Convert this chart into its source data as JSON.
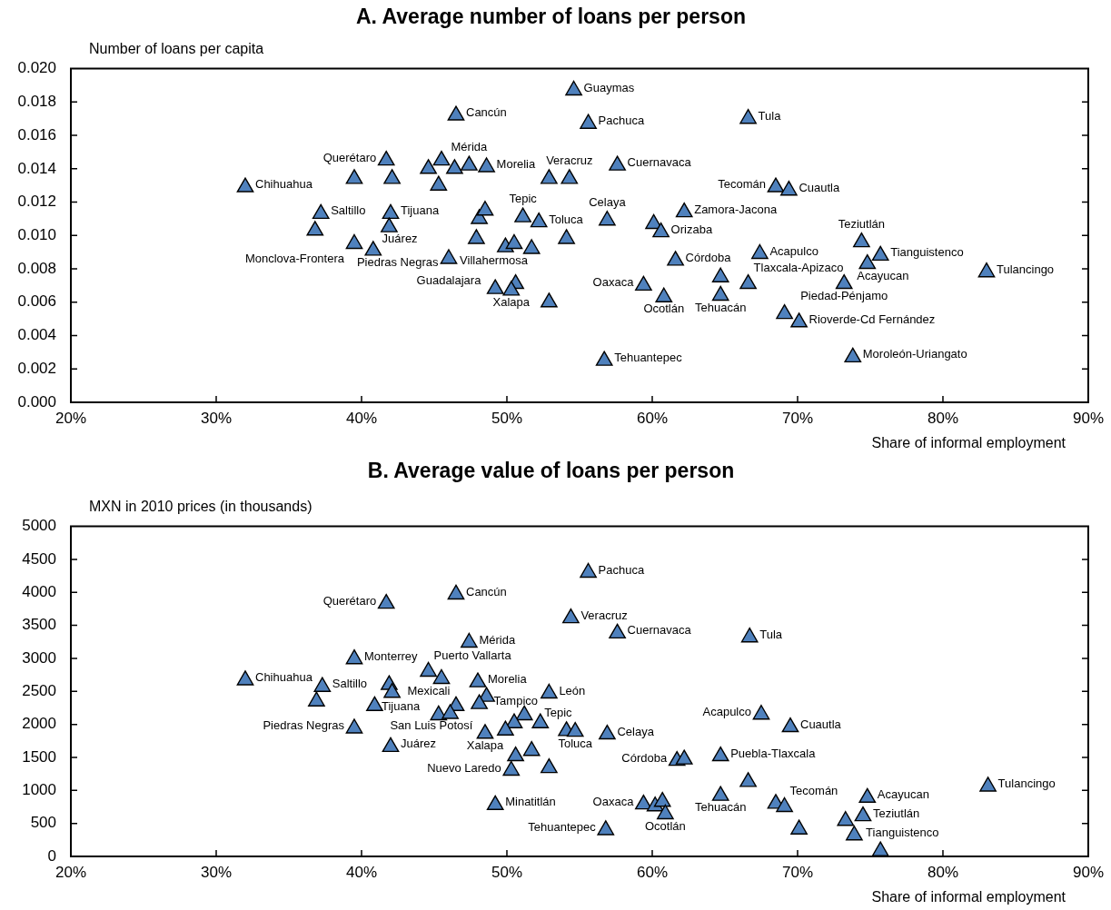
{
  "chart_data": [
    {
      "type": "scatter",
      "title": "A. Average number of loans per person",
      "ylabel": "Number of loans per capita",
      "xlabel": "Share of informal employment",
      "x": [
        32.0,
        37.2,
        36.8,
        39.5,
        40.8,
        39.5,
        41.7,
        42.1,
        42.0,
        41.9,
        46.5,
        44.6,
        45.5,
        45.3,
        46.4,
        47.4,
        48.6,
        54.6,
        55.6,
        52.9,
        54.3,
        57.6,
        66.6,
        51.1,
        52.2,
        48.1,
        48.5,
        47.9,
        56.9,
        54.1,
        49.9,
        50.5,
        51.7,
        46.0,
        49.2,
        50.6,
        50.3,
        52.9,
        56.7,
        62.2,
        60.1,
        60.6,
        61.6,
        59.4,
        60.8,
        64.7,
        64.7,
        66.6,
        67.4,
        68.5,
        69.4,
        74.4,
        75.7,
        74.8,
        73.2,
        83.0,
        69.1,
        70.1,
        73.8
      ],
      "values": [
        0.0129,
        0.0113,
        0.0103,
        0.0095,
        0.0091,
        0.0134,
        0.0145,
        0.0134,
        0.0113,
        0.0105,
        0.0172,
        0.014,
        0.0145,
        0.013,
        0.014,
        0.0142,
        0.0141,
        0.0187,
        0.0167,
        0.0134,
        0.0134,
        0.0142,
        0.017,
        0.0111,
        0.0108,
        0.011,
        0.0115,
        0.0098,
        0.0109,
        0.0098,
        0.0093,
        0.0095,
        0.0092,
        0.0086,
        0.0068,
        0.0071,
        0.0067,
        0.006,
        0.0025,
        0.0114,
        0.0107,
        0.0102,
        0.0085,
        0.007,
        0.0063,
        0.0064,
        0.0075,
        0.0071,
        0.0089,
        0.0129,
        0.0127,
        0.0096,
        0.0088,
        0.0083,
        0.0071,
        0.0078,
        0.0053,
        0.0048,
        0.0027
      ],
      "color": "#4f81bd",
      "marker": "triangle",
      "grid": false,
      "legend": false,
      "xlim": [
        20,
        90
      ],
      "xticks": [
        {
          "value": 20,
          "label": "20%"
        },
        {
          "value": 30,
          "label": "30%"
        },
        {
          "value": 40,
          "label": "40%"
        },
        {
          "value": 50,
          "label": "50%"
        },
        {
          "value": 60,
          "label": "60%"
        },
        {
          "value": 70,
          "label": "70%"
        },
        {
          "value": 80,
          "label": "80%"
        },
        {
          "value": 90,
          "label": "90%"
        }
      ],
      "ylim": [
        0,
        0.02
      ],
      "yticks": [
        {
          "value": 0,
          "label": "0.000"
        },
        {
          "value": 0.002,
          "label": "0.002"
        },
        {
          "value": 0.004,
          "label": "0.004"
        },
        {
          "value": 0.006,
          "label": "0.006"
        },
        {
          "value": 0.008,
          "label": "0.008"
        },
        {
          "value": 0.01,
          "label": "0.010"
        },
        {
          "value": 0.012,
          "label": "0.012"
        },
        {
          "value": 0.014,
          "label": "0.014"
        },
        {
          "value": 0.016,
          "label": "0.016"
        },
        {
          "value": 0.018,
          "label": "0.018"
        },
        {
          "value": 0.02,
          "label": "0.020"
        }
      ],
      "annotations": [
        {
          "text": "Chihuahua",
          "x": 32.0,
          "y": 0.0129
        },
        {
          "text": "Saltillo",
          "x": 37.2,
          "y": 0.0113
        },
        {
          "text": "Monclova-Frontera",
          "x": 39.5,
          "y": 0.0095
        },
        {
          "text": "Piedras Negras",
          "x": 40.8,
          "y": 0.0091
        },
        {
          "text": "Querétaro",
          "x": 41.7,
          "y": 0.0145
        },
        {
          "text": "Tijuana",
          "x": 42.0,
          "y": 0.0113
        },
        {
          "text": "Juárez",
          "x": 41.9,
          "y": 0.0105
        },
        {
          "text": "Cancún",
          "x": 46.5,
          "y": 0.0172
        },
        {
          "text": "Mérida",
          "x": 47.4,
          "y": 0.0142
        },
        {
          "text": "Morelia",
          "x": 48.6,
          "y": 0.0141
        },
        {
          "text": "Guaymas",
          "x": 54.6,
          "y": 0.0187
        },
        {
          "text": "Pachuca",
          "x": 55.6,
          "y": 0.0167
        },
        {
          "text": "Veracruz",
          "x": 54.3,
          "y": 0.0134
        },
        {
          "text": "Cuernavaca",
          "x": 57.6,
          "y": 0.0142
        },
        {
          "text": "Tula",
          "x": 66.6,
          "y": 0.017
        },
        {
          "text": "Tepic",
          "x": 51.1,
          "y": 0.0111
        },
        {
          "text": "Toluca",
          "x": 52.2,
          "y": 0.0108
        },
        {
          "text": "Celaya",
          "x": 56.9,
          "y": 0.0109
        },
        {
          "text": "Villahermosa",
          "x": 50.5,
          "y": 0.0095
        },
        {
          "text": "Guadalajara",
          "x": 46.0,
          "y": 0.0086
        },
        {
          "text": "Xalapa",
          "x": 50.3,
          "y": 0.0067
        },
        {
          "text": "Tehuantepec",
          "x": 56.7,
          "y": 0.0025
        },
        {
          "text": "Zamora-Jacona",
          "x": 62.2,
          "y": 0.0114
        },
        {
          "text": "Orizaba",
          "x": 60.6,
          "y": 0.0102
        },
        {
          "text": "Córdoba",
          "x": 61.6,
          "y": 0.0085
        },
        {
          "text": "Oaxaca",
          "x": 59.4,
          "y": 0.007
        },
        {
          "text": "Ocotlán",
          "x": 60.8,
          "y": 0.0063
        },
        {
          "text": "Tehuacán",
          "x": 64.7,
          "y": 0.0064
        },
        {
          "text": "Tlaxcala-Apizaco",
          "x": 66.6,
          "y": 0.0071
        },
        {
          "text": "Acapulco",
          "x": 67.4,
          "y": 0.0089
        },
        {
          "text": "Tecomán",
          "x": 68.5,
          "y": 0.0129
        },
        {
          "text": "Cuautla",
          "x": 69.4,
          "y": 0.0127
        },
        {
          "text": "Teziutlán",
          "x": 74.4,
          "y": 0.0096
        },
        {
          "text": "Tianguistenco",
          "x": 75.7,
          "y": 0.0088
        },
        {
          "text": "Acayucan",
          "x": 74.8,
          "y": 0.0083
        },
        {
          "text": "Piedad-Pénjamo",
          "x": 73.2,
          "y": 0.0071
        },
        {
          "text": "Tulancingo",
          "x": 83.0,
          "y": 0.0078
        },
        {
          "text": "Rioverde-Cd Fernández",
          "x": 70.1,
          "y": 0.0048
        },
        {
          "text": "Moroleón-Uriangato",
          "x": 73.8,
          "y": 0.0027
        }
      ]
    },
    {
      "type": "scatter",
      "title": "B. Average value of loans per person",
      "ylabel": "MXN in 2010 prices (in thousands)",
      "xlabel": "Share of informal employment",
      "x": [
        32.0,
        37.3,
        36.9,
        39.5,
        40.9,
        39.5,
        42.0,
        41.7,
        41.9,
        42.1,
        46.5,
        55.6,
        54.4,
        57.6,
        66.7,
        47.4,
        44.6,
        45.5,
        48.0,
        48.6,
        48.1,
        46.5,
        45.3,
        46.1,
        51.2,
        52.3,
        50.5,
        49.9,
        48.5,
        54.1,
        54.7,
        52.9,
        56.9,
        61.7,
        62.2,
        64.7,
        66.6,
        64.7,
        59.4,
        60.2,
        60.7,
        60.9,
        56.8,
        49.2,
        50.3,
        50.6,
        51.7,
        52.9,
        67.5,
        69.5,
        68.5,
        69.1,
        70.1,
        74.8,
        74.5,
        73.3,
        73.9,
        75.7,
        83.1
      ],
      "values": [
        2670,
        2570,
        2350,
        2990,
        2280,
        1940,
        1660,
        3830,
        2600,
        2480,
        3970,
        4300,
        3610,
        3380,
        3320,
        3240,
        2800,
        2690,
        2640,
        2420,
        2310,
        2280,
        2140,
        2160,
        2140,
        2020,
        2020,
        1910,
        1860,
        1900,
        1890,
        2470,
        1850,
        1450,
        1470,
        1520,
        1130,
        920,
        790,
        760,
        830,
        640,
        400,
        780,
        1300,
        1520,
        1600,
        1340,
        2150,
        1960,
        800,
        750,
        410,
        890,
        610,
        540,
        320,
        80,
        1060
      ],
      "color": "#4f81bd",
      "marker": "triangle",
      "grid": false,
      "legend": false,
      "xlim": [
        20,
        90
      ],
      "xticks": [
        {
          "value": 20,
          "label": "20%"
        },
        {
          "value": 30,
          "label": "30%"
        },
        {
          "value": 40,
          "label": "40%"
        },
        {
          "value": 50,
          "label": "50%"
        },
        {
          "value": 60,
          "label": "60%"
        },
        {
          "value": 70,
          "label": "70%"
        },
        {
          "value": 80,
          "label": "80%"
        },
        {
          "value": 90,
          "label": "90%"
        }
      ],
      "ylim": [
        0,
        5000
      ],
      "yticks": [
        0,
        500,
        1000,
        1500,
        2000,
        2500,
        3000,
        3500,
        4000,
        4500,
        5000
      ],
      "annotations": [
        {
          "text": "Chihuahua",
          "x": 32.0,
          "y": 2670
        },
        {
          "text": "Saltillo",
          "x": 37.3,
          "y": 2570
        },
        {
          "text": "Monterrey",
          "x": 39.5,
          "y": 2990
        },
        {
          "text": "San Luis Potosí",
          "x": 40.9,
          "y": 2280
        },
        {
          "text": "Piedras Negras",
          "x": 39.5,
          "y": 1940
        },
        {
          "text": "Juárez",
          "x": 42.0,
          "y": 1660
        },
        {
          "text": "Querétaro",
          "x": 41.7,
          "y": 3830
        },
        {
          "text": "Tijuana",
          "x": 41.9,
          "y": 2600
        },
        {
          "text": "Cancún",
          "x": 46.5,
          "y": 3970
        },
        {
          "text": "Pachuca",
          "x": 55.6,
          "y": 4300
        },
        {
          "text": "Veracruz",
          "x": 54.4,
          "y": 3610
        },
        {
          "text": "Cuernavaca",
          "x": 57.6,
          "y": 3380
        },
        {
          "text": "Tula",
          "x": 66.7,
          "y": 3320
        },
        {
          "text": "Mérida",
          "x": 47.4,
          "y": 3240
        },
        {
          "text": "Puerto Vallarta",
          "x": 44.6,
          "y": 2800
        },
        {
          "text": "Mexicali",
          "x": 45.5,
          "y": 2690
        },
        {
          "text": "Morelia",
          "x": 48.0,
          "y": 2640
        },
        {
          "text": "Tampico",
          "x": 48.1,
          "y": 2310
        },
        {
          "text": "Tepic",
          "x": 51.2,
          "y": 2140
        },
        {
          "text": "Xalapa",
          "x": 48.5,
          "y": 1860
        },
        {
          "text": "Toluca",
          "x": 54.7,
          "y": 1890
        },
        {
          "text": "León",
          "x": 52.9,
          "y": 2470
        },
        {
          "text": "Celaya",
          "x": 56.9,
          "y": 1850
        },
        {
          "text": "Córdoba",
          "x": 61.7,
          "y": 1450
        },
        {
          "text": "Puebla-Tlaxcala",
          "x": 64.7,
          "y": 1520
        },
        {
          "text": "Tehuacán",
          "x": 64.7,
          "y": 920
        },
        {
          "text": "Oaxaca",
          "x": 59.4,
          "y": 790
        },
        {
          "text": "Ocotlán",
          "x": 60.9,
          "y": 640
        },
        {
          "text": "Tehuantepec",
          "x": 56.8,
          "y": 400
        },
        {
          "text": "Minatitlán",
          "x": 49.2,
          "y": 780
        },
        {
          "text": "Nuevo Laredo",
          "x": 50.3,
          "y": 1300
        },
        {
          "text": "Acapulco",
          "x": 67.5,
          "y": 2150
        },
        {
          "text": "Cuautla",
          "x": 69.5,
          "y": 1960
        },
        {
          "text": "Tecomán",
          "x": 69.1,
          "y": 750
        },
        {
          "text": "Acayucan",
          "x": 74.8,
          "y": 890
        },
        {
          "text": "Teziutlán",
          "x": 74.5,
          "y": 610
        },
        {
          "text": "Tianguistenco",
          "x": 75.7,
          "y": 80
        },
        {
          "text": "Tulancingo",
          "x": 83.1,
          "y": 1060
        }
      ]
    }
  ]
}
